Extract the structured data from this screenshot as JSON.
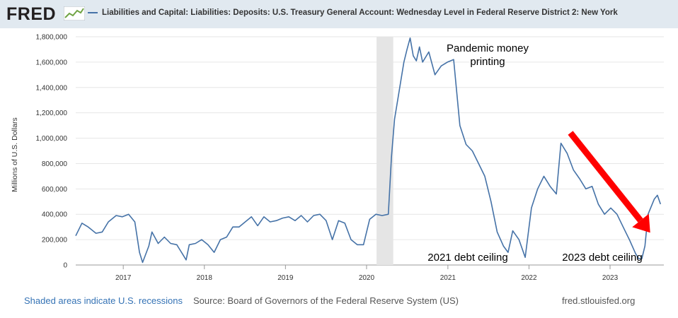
{
  "header": {
    "logo_text": "FRED",
    "legend_label": "Liabilities and Capital: Liabilities: Deposits: U.S. Treasury General Account: Wednesday Level in Federal Reserve District 2: New York"
  },
  "footer": {
    "recession_note": "Shaded areas indicate U.S. recessions",
    "source": "Source: Board of Governors of the Federal Reserve System (US)",
    "url": "fred.stlouisfed.org"
  },
  "colors": {
    "line": "#4572a7",
    "recession": "#e5e5e5",
    "arrow": "#ff0000",
    "grid": "#e6e6e6",
    "header_bg": "#e1e9f0"
  },
  "chart_data": {
    "type": "line",
    "ylabel": "Millions of U.S. Dollars",
    "ylim": [
      0,
      1800000
    ],
    "y_ticks": [
      0,
      200000,
      400000,
      600000,
      800000,
      1000000,
      1200000,
      1400000,
      1600000,
      1800000
    ],
    "y_tick_labels": [
      "0",
      "200,000",
      "400,000",
      "600,000",
      "800,000",
      "1,000,000",
      "1,200,000",
      "1,400,000",
      "1,600,000",
      "1,800,000"
    ],
    "xlim": [
      "2016-06-01",
      "2023-08-31"
    ],
    "x_tick_labels": [
      "2017",
      "2018",
      "2019",
      "2020",
      "2021",
      "2022",
      "2023"
    ],
    "x_tick_dates": [
      "2017-01-01",
      "2018-01-01",
      "2019-01-01",
      "2020-01-01",
      "2021-01-01",
      "2022-01-01",
      "2023-01-01"
    ],
    "grid": "horizontal",
    "recession": {
      "start": "2020-02-15",
      "end": "2020-04-30"
    },
    "series": [
      {
        "name": "Liabilities and Capital: Liabilities: Deposits: U.S. Treasury General Account: Wednesday Level in Federal Reserve District 2: New York",
        "points": [
          [
            "2016-06-01",
            230000
          ],
          [
            "2016-06-29",
            330000
          ],
          [
            "2016-07-27",
            300000
          ],
          [
            "2016-08-31",
            250000
          ],
          [
            "2016-09-28",
            260000
          ],
          [
            "2016-10-26",
            340000
          ],
          [
            "2016-11-30",
            390000
          ],
          [
            "2016-12-28",
            380000
          ],
          [
            "2017-01-25",
            400000
          ],
          [
            "2017-02-22",
            340000
          ],
          [
            "2017-03-15",
            100000
          ],
          [
            "2017-03-29",
            20000
          ],
          [
            "2017-04-26",
            150000
          ],
          [
            "2017-05-10",
            260000
          ],
          [
            "2017-06-07",
            170000
          ],
          [
            "2017-07-05",
            220000
          ],
          [
            "2017-08-02",
            170000
          ],
          [
            "2017-08-30",
            160000
          ],
          [
            "2017-09-27",
            80000
          ],
          [
            "2017-10-11",
            40000
          ],
          [
            "2017-10-25",
            160000
          ],
          [
            "2017-11-22",
            170000
          ],
          [
            "2017-12-20",
            200000
          ],
          [
            "2018-01-17",
            160000
          ],
          [
            "2018-02-14",
            100000
          ],
          [
            "2018-03-14",
            200000
          ],
          [
            "2018-04-11",
            220000
          ],
          [
            "2018-05-09",
            300000
          ],
          [
            "2018-06-06",
            300000
          ],
          [
            "2018-07-04",
            340000
          ],
          [
            "2018-08-01",
            380000
          ],
          [
            "2018-08-29",
            310000
          ],
          [
            "2018-09-26",
            380000
          ],
          [
            "2018-10-24",
            340000
          ],
          [
            "2018-11-21",
            350000
          ],
          [
            "2018-12-19",
            370000
          ],
          [
            "2019-01-16",
            380000
          ],
          [
            "2019-02-13",
            350000
          ],
          [
            "2019-03-13",
            390000
          ],
          [
            "2019-04-10",
            340000
          ],
          [
            "2019-05-08",
            390000
          ],
          [
            "2019-06-05",
            400000
          ],
          [
            "2019-07-03",
            350000
          ],
          [
            "2019-07-31",
            200000
          ],
          [
            "2019-08-28",
            350000
          ],
          [
            "2019-09-25",
            330000
          ],
          [
            "2019-10-23",
            200000
          ],
          [
            "2019-11-20",
            160000
          ],
          [
            "2019-12-18",
            160000
          ],
          [
            "2020-01-15",
            360000
          ],
          [
            "2020-02-12",
            400000
          ],
          [
            "2020-03-11",
            390000
          ],
          [
            "2020-04-08",
            400000
          ],
          [
            "2020-04-22",
            850000
          ],
          [
            "2020-05-06",
            1150000
          ],
          [
            "2020-05-20",
            1300000
          ],
          [
            "2020-06-03",
            1450000
          ],
          [
            "2020-06-17",
            1600000
          ],
          [
            "2020-07-01",
            1700000
          ],
          [
            "2020-07-15",
            1790000
          ],
          [
            "2020-07-29",
            1650000
          ],
          [
            "2020-08-12",
            1610000
          ],
          [
            "2020-08-26",
            1720000
          ],
          [
            "2020-09-09",
            1600000
          ],
          [
            "2020-10-07",
            1680000
          ],
          [
            "2020-11-04",
            1500000
          ],
          [
            "2020-12-02",
            1570000
          ],
          [
            "2020-12-30",
            1600000
          ],
          [
            "2021-01-27",
            1620000
          ],
          [
            "2021-02-24",
            1100000
          ],
          [
            "2021-03-24",
            950000
          ],
          [
            "2021-04-21",
            900000
          ],
          [
            "2021-05-19",
            800000
          ],
          [
            "2021-06-16",
            700000
          ],
          [
            "2021-07-14",
            500000
          ],
          [
            "2021-08-11",
            260000
          ],
          [
            "2021-09-08",
            150000
          ],
          [
            "2021-09-29",
            100000
          ],
          [
            "2021-10-20",
            270000
          ],
          [
            "2021-11-17",
            200000
          ],
          [
            "2021-12-15",
            60000
          ],
          [
            "2022-01-12",
            450000
          ],
          [
            "2022-02-09",
            600000
          ],
          [
            "2022-03-09",
            700000
          ],
          [
            "2022-04-06",
            620000
          ],
          [
            "2022-05-04",
            560000
          ],
          [
            "2022-05-25",
            960000
          ],
          [
            "2022-06-22",
            880000
          ],
          [
            "2022-07-20",
            750000
          ],
          [
            "2022-08-17",
            680000
          ],
          [
            "2022-09-14",
            600000
          ],
          [
            "2022-10-12",
            620000
          ],
          [
            "2022-11-09",
            480000
          ],
          [
            "2022-12-07",
            400000
          ],
          [
            "2023-01-04",
            450000
          ],
          [
            "2023-02-01",
            400000
          ],
          [
            "2023-03-01",
            300000
          ],
          [
            "2023-03-29",
            200000
          ],
          [
            "2023-04-26",
            90000
          ],
          [
            "2023-05-10",
            50000
          ],
          [
            "2023-05-24",
            50000
          ],
          [
            "2023-06-07",
            150000
          ],
          [
            "2023-06-21",
            400000
          ],
          [
            "2023-07-19",
            520000
          ],
          [
            "2023-08-02",
            550000
          ],
          [
            "2023-08-16",
            480000
          ]
        ]
      }
    ],
    "annotations": [
      {
        "text_lines": [
          "Pandemic money",
          "printing"
        ]
      },
      {
        "text_lines": [
          "2021 debt ceiling"
        ]
      },
      {
        "text_lines": [
          "2023 debt ceiling"
        ]
      }
    ]
  }
}
